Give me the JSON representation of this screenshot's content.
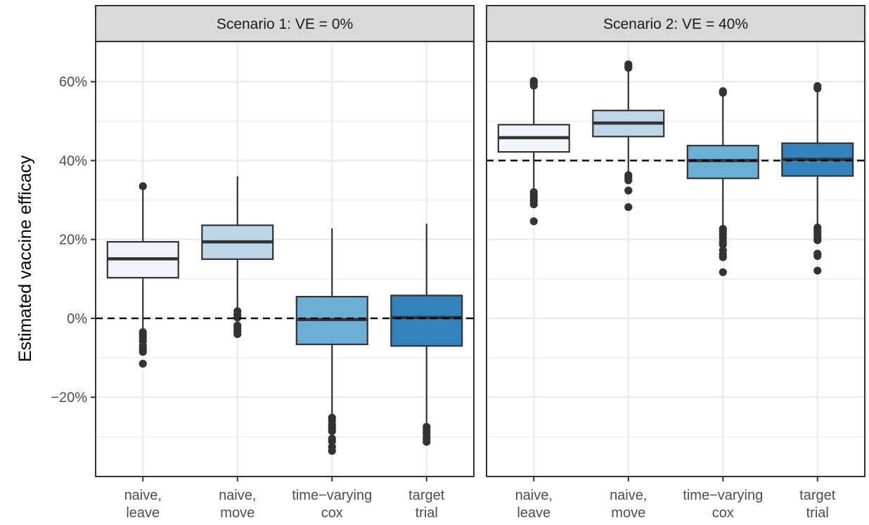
{
  "chart_data": {
    "type": "boxplot",
    "ylabel": "Estimated vaccine efficacy",
    "xlabel": "",
    "ylim": [
      -40,
      70
    ],
    "y_ticks": [
      -20,
      0,
      20,
      40,
      60
    ],
    "y_tick_labels": [
      "−20%",
      "0%",
      "20%",
      "40%",
      "60%"
    ],
    "grid": true,
    "categories": [
      [
        "naive,",
        "leave"
      ],
      [
        "naive,",
        "move"
      ],
      [
        "time−varying",
        "cox"
      ],
      [
        "target",
        "trial"
      ]
    ],
    "colors": [
      "#eff3ff",
      "#bdd7e7",
      "#6baed6",
      "#3182bd"
    ],
    "panels": [
      {
        "title": "Scenario 1: VE = 0%",
        "reference_line": 0,
        "boxes": [
          {
            "q1": 10.3,
            "median": 15.1,
            "q3": 19.4,
            "whisker_low": -3.0,
            "whisker_high": 33.0,
            "outliers": [
              33.5,
              -3.5,
              -4.2,
              -5.0,
              -5.8,
              -7.0,
              -7.8,
              -8.5,
              -11.5
            ]
          },
          {
            "q1": 15.0,
            "median": 19.4,
            "q3": 23.6,
            "whisker_low": 2.0,
            "whisker_high": 36.0,
            "outliers": [
              1.8,
              0.9,
              0.2,
              -1.8,
              -2.6,
              -3.3,
              -4.0
            ]
          },
          {
            "q1": -6.6,
            "median": -0.3,
            "q3": 5.5,
            "whisker_low": -24.5,
            "whisker_high": 22.8,
            "outliers": [
              -25.2,
              -26.0,
              -27.0,
              -27.8,
              -28.6,
              -30.5,
              -31.2,
              -32.6,
              -33.6
            ]
          },
          {
            "q1": -7.0,
            "median": 0.2,
            "q3": 5.8,
            "whisker_low": -26.5,
            "whisker_high": 24.0,
            "outliers": [
              -27.5,
              -28.3,
              -29.0,
              -30.0,
              -30.6,
              -31.3
            ]
          }
        ]
      },
      {
        "title": "Scenario 2: VE = 40%",
        "reference_line": 40,
        "boxes": [
          {
            "q1": 42.2,
            "median": 45.8,
            "q3": 49.1,
            "whisker_low": 33.0,
            "whisker_high": 59.5,
            "outliers": [
              60.2,
              59.6,
              59.0,
              32.0,
              31.2,
              30.5,
              29.8,
              28.9,
              24.6
            ]
          },
          {
            "q1": 46.1,
            "median": 49.5,
            "q3": 52.7,
            "whisker_low": 37.0,
            "whisker_high": 63.5,
            "outliers": [
              64.4,
              63.9,
              63.5,
              36.3,
              35.7,
              35.0,
              32.4,
              28.2
            ]
          },
          {
            "q1": 35.5,
            "median": 40.0,
            "q3": 43.8,
            "whisker_low": 23.5,
            "whisker_high": 57.0,
            "outliers": [
              57.6,
              57.2,
              22.7,
              22.0,
              21.2,
              20.4,
              19.4,
              18.7,
              17.2,
              16.2,
              15.5,
              11.7
            ]
          },
          {
            "q1": 36.1,
            "median": 40.3,
            "q3": 44.4,
            "whisker_low": 23.5,
            "whisker_high": 58.0,
            "outliers": [
              58.9,
              58.3,
              23.0,
              22.3,
              21.6,
              20.9,
              20.3,
              19.8,
              16.4,
              15.8,
              12.1
            ]
          }
        ]
      }
    ]
  }
}
